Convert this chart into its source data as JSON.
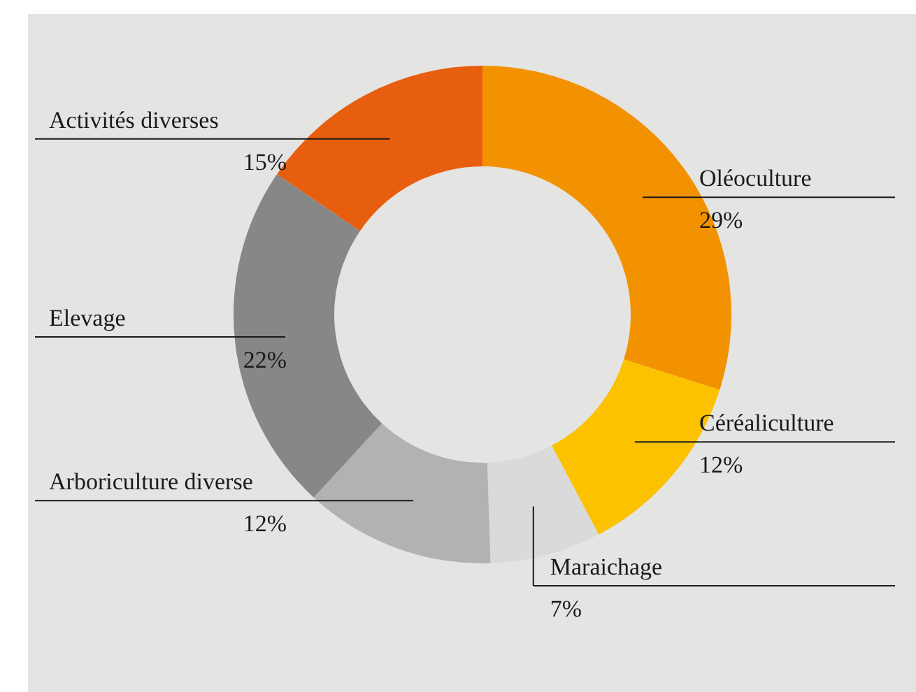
{
  "chart_data": {
    "type": "donut",
    "categories": [
      "Oléoculture",
      "Céréaliculture",
      "Maraichage",
      "Arboriculture diverse",
      "Elevage",
      "Activités diverses"
    ],
    "values": [
      29,
      12,
      7,
      12,
      22,
      15
    ],
    "value_labels": [
      "29%",
      "12%",
      "7%",
      "12%",
      "22%",
      "15%"
    ],
    "colors": [
      "#f39200",
      "#fcc200",
      "#dadada",
      "#b2b2b2",
      "#878787",
      "#e85e0f"
    ]
  }
}
